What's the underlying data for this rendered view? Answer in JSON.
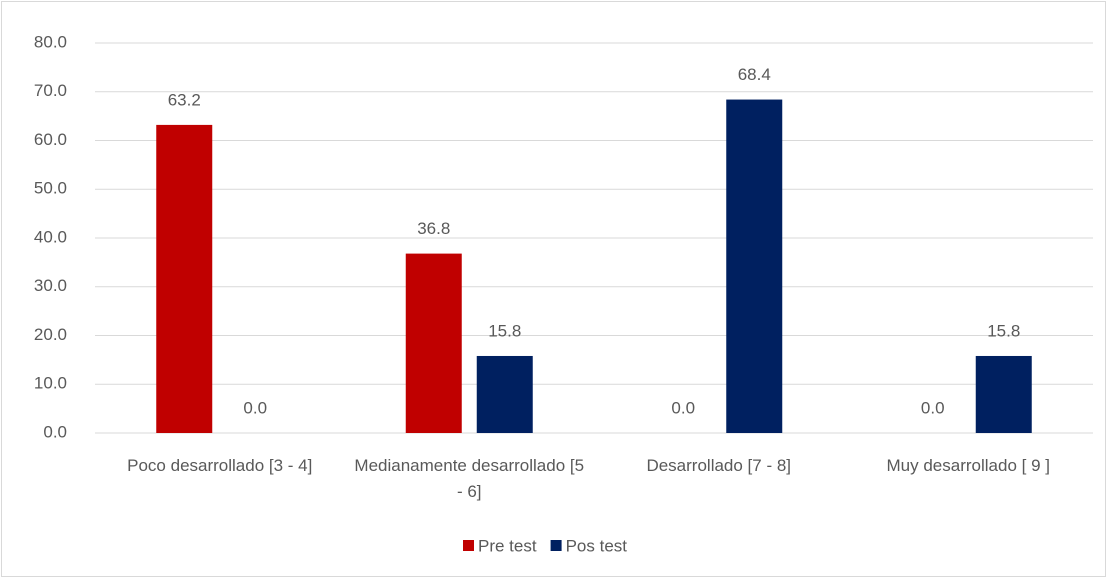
{
  "chart_data": {
    "type": "bar",
    "categories": [
      "Poco desarrollado [3 - 4]",
      "Medianamente desarrollado [5 - 6]",
      "Desarrollado [7 - 8]",
      "Muy desarrollado [ 9 ]"
    ],
    "series": [
      {
        "name": "Pre test",
        "color": "#c00000",
        "values": [
          63.2,
          36.8,
          0,
          0
        ],
        "value_labels": [
          "63.2",
          "36.8",
          "0.0",
          "0.0"
        ]
      },
      {
        "name": "Pos test",
        "color": "#002060",
        "values": [
          0,
          15.8,
          68.4,
          15.8
        ],
        "value_labels": [
          "0.0",
          "15.8",
          "68.4",
          "15.8"
        ]
      }
    ],
    "ylim": [
      0,
      80
    ],
    "yticks": [
      {
        "value": 0,
        "label": "0.0"
      },
      {
        "value": 10,
        "label": "10.0"
      },
      {
        "value": 20,
        "label": "20.0"
      },
      {
        "value": 30,
        "label": "30.0"
      },
      {
        "value": 40,
        "label": "40.0"
      },
      {
        "value": 50,
        "label": "50.0"
      },
      {
        "value": 60,
        "label": "60.0"
      },
      {
        "value": 70,
        "label": "70.0"
      },
      {
        "value": 80,
        "label": "80.0"
      }
    ],
    "grid": true,
    "legend": "bottom"
  }
}
